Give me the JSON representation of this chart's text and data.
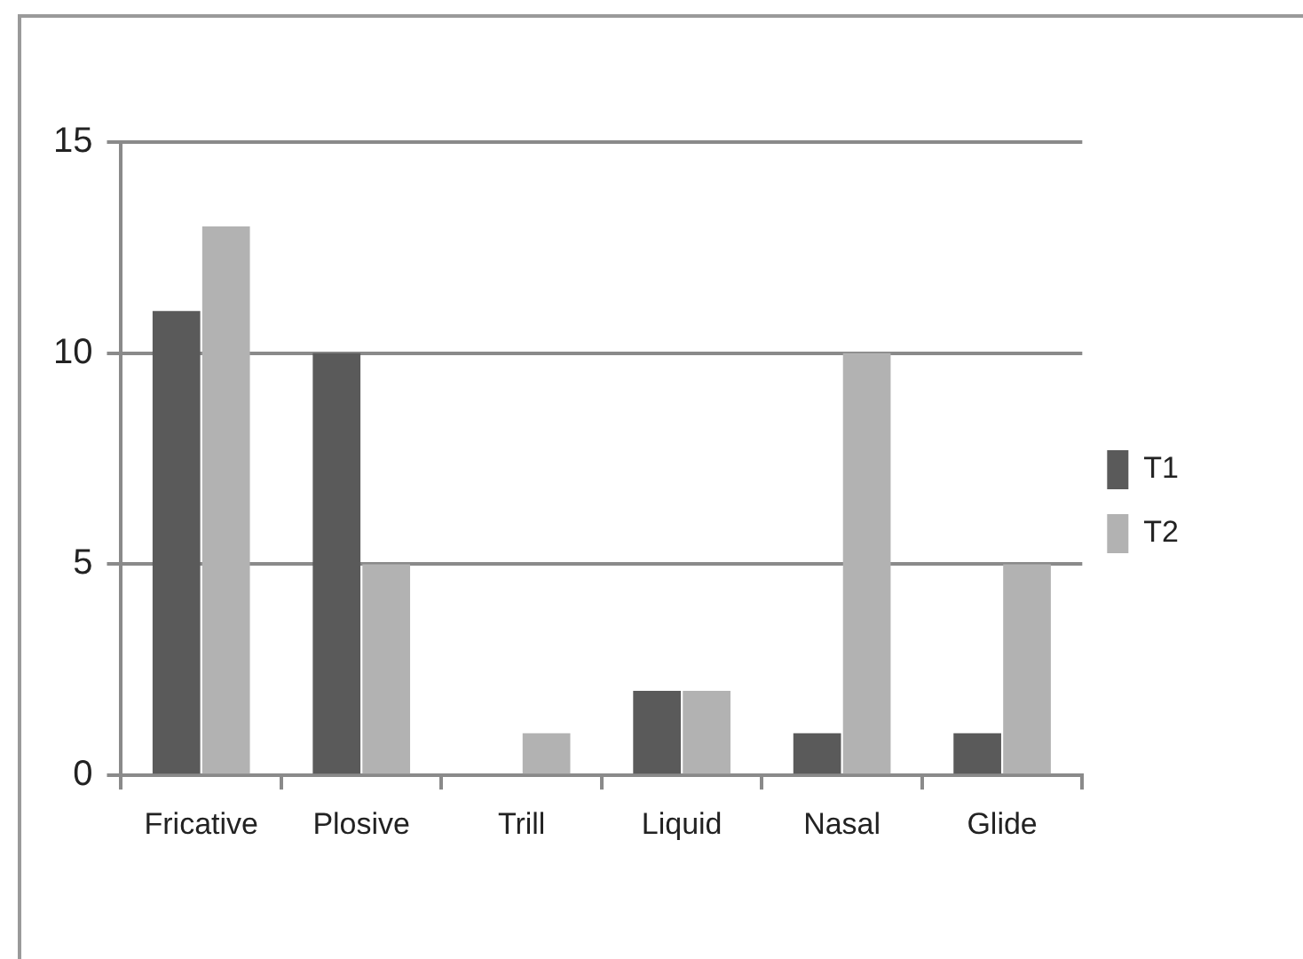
{
  "chart_data": {
    "type": "bar",
    "categories": [
      "Fricative",
      "Plosive",
      "Trill",
      "Liquid",
      "Nasal",
      "Glide"
    ],
    "series": [
      {
        "name": "T1",
        "color": "#5a5a5a",
        "values": [
          11,
          10,
          0,
          2,
          1,
          1
        ]
      },
      {
        "name": "T2",
        "color": "#b2b2b2",
        "values": [
          13,
          5,
          1,
          2,
          10,
          5
        ]
      }
    ],
    "ylim": [
      0,
      15
    ],
    "yticks": [
      0,
      5,
      10,
      15
    ],
    "grid": "y",
    "legend": "right"
  }
}
